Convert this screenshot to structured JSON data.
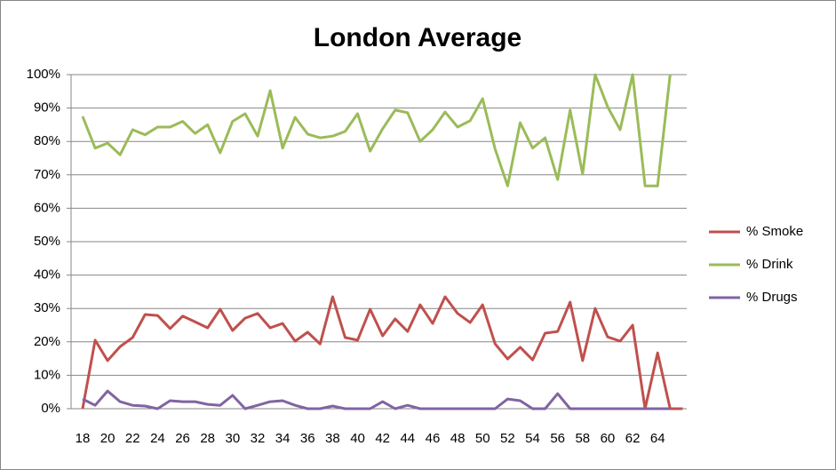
{
  "chart_data": {
    "type": "line",
    "title": "London Average",
    "categories": [
      "18",
      null,
      "20",
      null,
      "22",
      null,
      "24",
      null,
      "26",
      null,
      "28",
      null,
      "30",
      null,
      "32",
      null,
      "34",
      null,
      "36",
      null,
      "38",
      null,
      "40",
      null,
      "42",
      null,
      "44",
      null,
      "46",
      null,
      "48",
      null,
      "50",
      null,
      "52",
      null,
      "54",
      null,
      "56",
      null,
      "58",
      null,
      "60",
      null,
      "62",
      null,
      "64",
      null,
      null
    ],
    "ylim": [
      0,
      100
    ],
    "yticks": [
      {
        "value": 0,
        "label": "0%"
      },
      {
        "value": 10,
        "label": "10%"
      },
      {
        "value": 20,
        "label": "20%"
      },
      {
        "value": 30,
        "label": "30%"
      },
      {
        "value": 40,
        "label": "40%"
      },
      {
        "value": 50,
        "label": "50%"
      },
      {
        "value": 60,
        "label": "60%"
      },
      {
        "value": 70,
        "label": "70%"
      },
      {
        "value": 80,
        "label": "80%"
      },
      {
        "value": 90,
        "label": "90%"
      },
      {
        "value": 100,
        "label": "100%"
      }
    ],
    "grid": true,
    "legend": "right",
    "series": [
      {
        "name": "% Smoke",
        "color": "#c0504d",
        "values": [
          0,
          20.5,
          14.4,
          18.6,
          21.3,
          28.2,
          27.9,
          24,
          27.7,
          26,
          24.2,
          29.8,
          23.4,
          27.1,
          28.5,
          24.2,
          25.5,
          20.2,
          22.9,
          19.4,
          33.5,
          21.3,
          20.5,
          29.8,
          21.8,
          26.9,
          23.1,
          31.1,
          25.5,
          33.5,
          28.5,
          25.8,
          31.1,
          19.4,
          14.9,
          18.4,
          14.6,
          22.6,
          23.1,
          31.9,
          14.4,
          30,
          21.5,
          20.2,
          25,
          0,
          16.7,
          0,
          0
        ]
      },
      {
        "name": "% Drink",
        "color": "#9bbb59",
        "values": [
          87.5,
          78,
          79.5,
          76,
          83.5,
          82,
          84.3,
          84.3,
          86,
          82.4,
          85,
          76.6,
          86,
          88.3,
          81.6,
          95.2,
          78,
          87.2,
          82.2,
          81.1,
          81.6,
          83,
          88.3,
          77.1,
          83.8,
          89.4,
          88.6,
          80,
          83.5,
          88.8,
          84.3,
          86.2,
          92.8,
          77.7,
          66.7,
          85.6,
          78,
          81.1,
          68.6,
          89.4,
          70.2,
          100,
          90.4,
          83.5,
          100,
          66.7,
          66.7,
          100,
          null
        ]
      },
      {
        "name": "% Drugs",
        "color": "#8064a2",
        "values": [
          2.9,
          1,
          5.3,
          2.1,
          1,
          0.8,
          0,
          2.4,
          2.1,
          2.1,
          1.3,
          1,
          4,
          0,
          1,
          2.1,
          2.4,
          1,
          0,
          0,
          0.8,
          0,
          0,
          0,
          2.1,
          0,
          1,
          0,
          0,
          0,
          0,
          0,
          0,
          0,
          2.9,
          2.4,
          0,
          0,
          4.5,
          0,
          0,
          0,
          0,
          0,
          0,
          0,
          0,
          0,
          null
        ]
      }
    ]
  }
}
